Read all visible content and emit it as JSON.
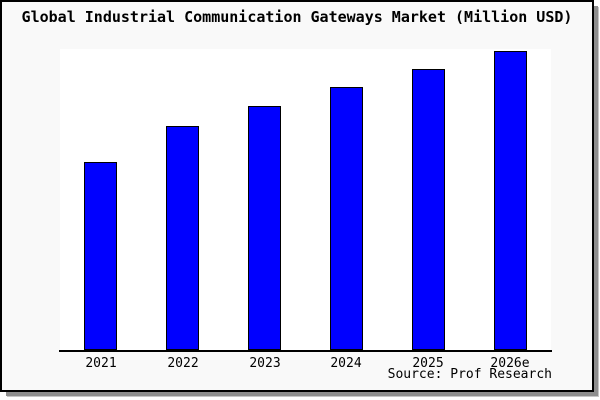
{
  "chart_data": {
    "type": "bar",
    "title": "Global Industrial Communication Gateways Market (Million USD)",
    "categories": [
      "2021",
      "2022",
      "2023",
      "2024",
      "2025",
      "2026e"
    ],
    "values": [
      188,
      224,
      244,
      263,
      281,
      299
    ],
    "xlabel": "",
    "ylabel": "",
    "ylim": [
      0,
      301
    ],
    "grid": false,
    "legend": false,
    "source": "Source: Prof Research",
    "bar_color": "#0000FF",
    "bar_border_color": "#000000",
    "axis_color": "#000000"
  },
  "colors": {
    "figure_background": "#F9F9F9",
    "plot_background": "#FFFFFF",
    "frame_border": "#000000",
    "shadow": "#8E8E8E",
    "text": "#000000"
  }
}
